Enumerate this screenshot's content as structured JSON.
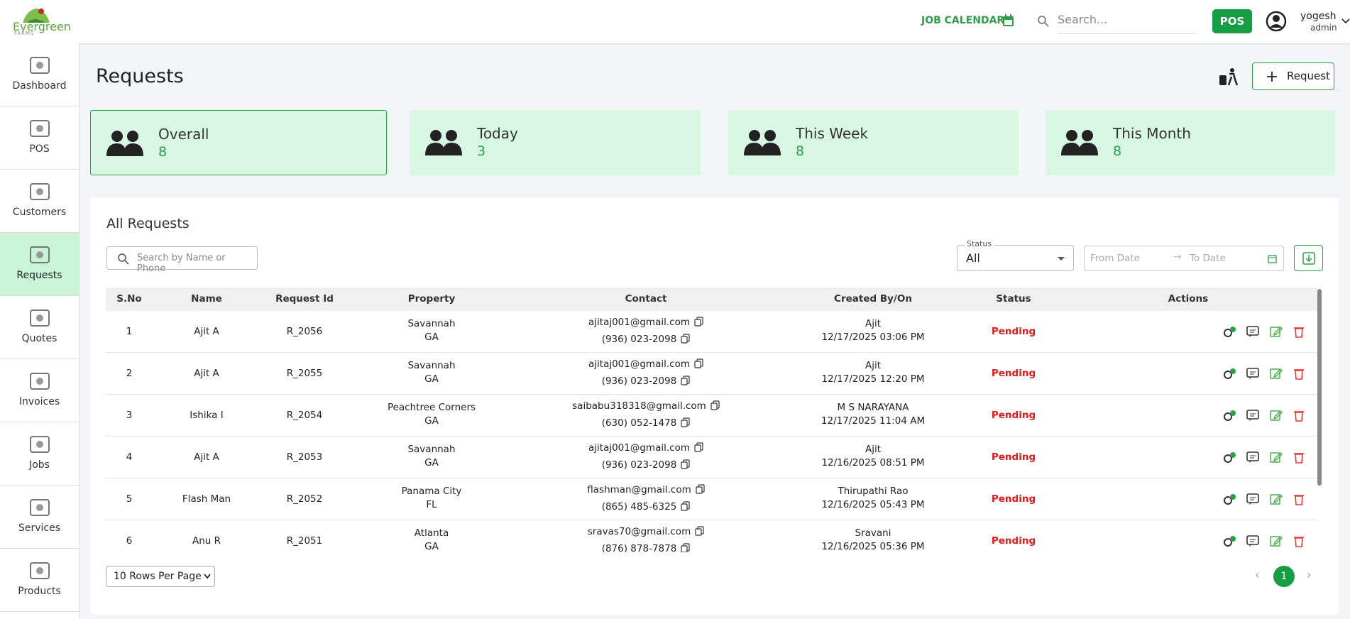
{
  "header": {
    "logo": "Evergreen",
    "logo_sub": "FARMS",
    "job_calendar": "JOB CALENDAR",
    "search_placeholder": "Search...",
    "pos": "POS",
    "user": "yogesh",
    "role": "admin"
  },
  "sidebar": [
    "Dashboard",
    "POS",
    "Customers",
    "Requests",
    "Quotes",
    "Invoices",
    "Jobs",
    "Services",
    "Products"
  ],
  "page": {
    "title": "Requests",
    "button": "Request"
  },
  "cards": [
    {
      "label": "Overall",
      "value": 8
    },
    {
      "label": "Today",
      "value": 3
    },
    {
      "label": "This Week",
      "value": 8
    },
    {
      "label": "This Month",
      "value": 8
    }
  ],
  "panel": {
    "title": "All Requests",
    "search_placeholder": "Search by Name or Phone",
    "status_label": "Status",
    "status_value": "All",
    "from_date": "From Date",
    "to_date": "To Date"
  },
  "table": {
    "columns": [
      "S.No",
      "Name",
      "Request Id",
      "Property",
      "Contact",
      "Created By/On",
      "Status",
      "Actions"
    ],
    "rows": [
      {
        "sno": 1,
        "name": "Ajit A",
        "id": "R_2056",
        "city": "Savannah",
        "state": "GA",
        "email": "ajitaj001@gmail.com",
        "phone": "(936) 023-2098",
        "created_by": "Ajit",
        "created_on": "12/17/2025 03:06 PM",
        "status": "Pending"
      },
      {
        "sno": 2,
        "name": "Ajit A",
        "id": "R_2055",
        "city": "Savannah",
        "state": "GA",
        "email": "ajitaj001@gmail.com",
        "phone": "(936) 023-2098",
        "created_by": "Ajit",
        "created_on": "12/17/2025 12:20 PM",
        "status": "Pending"
      },
      {
        "sno": 3,
        "name": "Ishika I",
        "id": "R_2054",
        "city": "Peachtree Corners",
        "state": "GA",
        "email": "saibabu318318@gmail.com",
        "phone": "(630) 052-1478",
        "created_by": "M S NARAYANA",
        "created_on": "12/17/2025 11:04 AM",
        "status": "Pending"
      },
      {
        "sno": 4,
        "name": "Ajit A",
        "id": "R_2053",
        "city": "Savannah",
        "state": "GA",
        "email": "ajitaj001@gmail.com",
        "phone": "(936) 023-2098",
        "created_by": "Ajit",
        "created_on": "12/16/2025 08:51 PM",
        "status": "Pending"
      },
      {
        "sno": 5,
        "name": "Flash Man",
        "id": "R_2052",
        "city": "Panama City",
        "state": "FL",
        "email": "flashman@gmail.com",
        "phone": "(865) 485-6325",
        "created_by": "Thirupathi Rao",
        "created_on": "12/16/2025 05:43 PM",
        "status": "Pending"
      },
      {
        "sno": 6,
        "name": "Anu R",
        "id": "R_2051",
        "city": "Atlanta",
        "state": "GA",
        "email": "sravas70@gmail.com",
        "phone": "(876) 878-7878",
        "created_by": "Sravani",
        "created_on": "12/16/2025 05:36 PM",
        "status": "Pending"
      }
    ]
  },
  "footer": {
    "rows_per_page": "10 Rows Per Page",
    "page": 1
  }
}
